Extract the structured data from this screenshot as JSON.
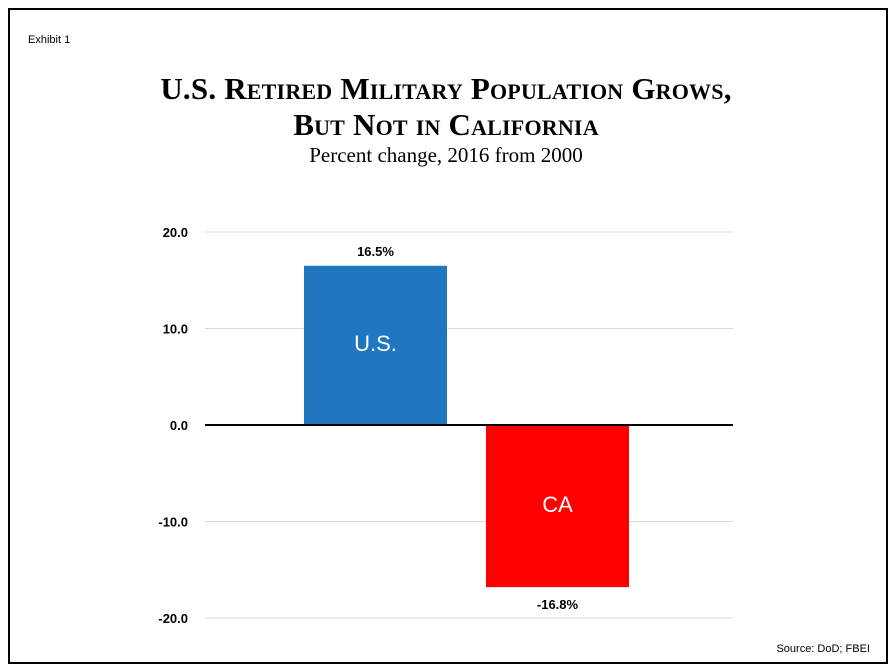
{
  "exhibit_label": "Exhibit 1",
  "title_line1": "U.S. Retired Military Population Grows,",
  "title_line2": "But Not in California",
  "subtitle": "Percent change, 2016 from 2000",
  "source": "Source: DoD; FBEI",
  "chart_data": {
    "type": "bar",
    "categories": [
      "U.S.",
      "CA"
    ],
    "values": [
      16.5,
      -16.8
    ],
    "data_labels": [
      "16.5%",
      "-16.8%"
    ],
    "colors": [
      "#1f77c0",
      "#ff0000"
    ],
    "ylim": [
      -20,
      20
    ],
    "yticks": [
      20,
      10,
      0,
      -10,
      -20
    ],
    "ytick_labels": [
      "20.0",
      "10.0",
      "0.0",
      "-10.0",
      "-20.0"
    ],
    "grid": true,
    "legend": "none"
  }
}
